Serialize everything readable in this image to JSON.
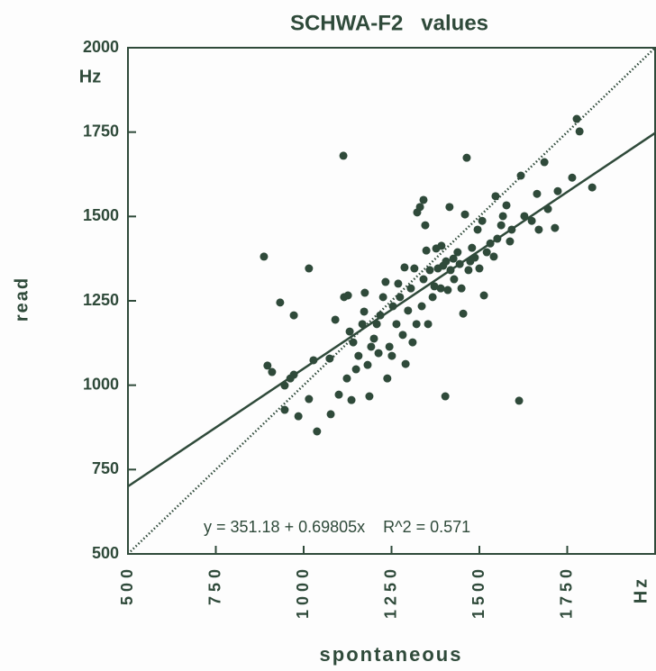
{
  "chart_data": {
    "type": "scatter",
    "title": "SCHWA-F2   values",
    "x_label": "spontaneous",
    "y_label": "read",
    "x_unit": "Hz",
    "y_unit": "Hz",
    "annotation": "y = 351.18 + 0.69805x    R^2 = 0.571",
    "fit": {
      "intercept": 351.18,
      "slope": 0.69805
    },
    "color": "#2f4a3a",
    "xlim": [
      500,
      2000
    ],
    "ylim": [
      500,
      2000
    ],
    "xticks": [
      500,
      750,
      1000,
      1250,
      1500,
      1750
    ],
    "yticks": [
      500,
      750,
      1000,
      1250,
      1500,
      1750,
      2000
    ],
    "x": [
      887,
      897,
      910,
      933,
      946,
      972,
      962,
      972,
      946,
      985,
      1015,
      1015,
      1028,
      1038,
      1077,
      1074,
      1090,
      1113,
      1100,
      1115,
      1126,
      1131,
      1123,
      1136,
      1141,
      1149,
      1156,
      1167,
      1172,
      1174,
      1182,
      1187,
      1192,
      1200,
      1208,
      1213,
      1218,
      1226,
      1233,
      1238,
      1244,
      1251,
      1254,
      1264,
      1269,
      1274,
      1282,
      1287,
      1290,
      1297,
      1305,
      1310,
      1315,
      1321,
      1323,
      1331,
      1336,
      1341,
      1341,
      1346,
      1349,
      1354,
      1359,
      1367,
      1372,
      1377,
      1382,
      1390,
      1392,
      1397,
      1403,
      1405,
      1410,
      1415,
      1418,
      1426,
      1428,
      1438,
      1444,
      1449,
      1454,
      1459,
      1464,
      1469,
      1474,
      1479,
      1487,
      1495,
      1500,
      1508,
      1513,
      1521,
      1531,
      1541,
      1546,
      1551,
      1562,
      1567,
      1577,
      1587,
      1592,
      1613,
      1618,
      1628,
      1649,
      1664,
      1669,
      1685,
      1695,
      1715,
      1723,
      1764,
      1777,
      1785,
      1821
    ],
    "values": [
      1381,
      1058,
      1039,
      1245,
      999,
      1207,
      1020,
      1031,
      927,
      908,
      959,
      1346,
      1074,
      863,
      914,
      1079,
      1194,
      1680,
      972,
      1261,
      1266,
      1159,
      1020,
      956,
      1127,
      1047,
      1087,
      1181,
      1218,
      1274,
      1060,
      967,
      1114,
      1138,
      1181,
      1095,
      1207,
      1261,
      1306,
      1020,
      1114,
      1087,
      1234,
      1181,
      1301,
      1261,
      1149,
      1349,
      1063,
      1221,
      1287,
      1127,
      1346,
      1181,
      1512,
      1528,
      1234,
      1549,
      1314,
      1474,
      1399,
      1181,
      1341,
      1261,
      1293,
      1405,
      1346,
      1287,
      1413,
      1354,
      967,
      1367,
      1282,
      1528,
      1341,
      1375,
      1314,
      1394,
      1359,
      1287,
      1212,
      1506,
      1674,
      1341,
      1367,
      1407,
      1378,
      1461,
      1346,
      1487,
      1266,
      1394,
      1420,
      1381,
      1560,
      1434,
      1474,
      1501,
      1533,
      1426,
      1461,
      954,
      1621,
      1501,
      1487,
      1567,
      1461,
      1661,
      1522,
      1466,
      1575,
      1615,
      1789,
      1752,
      1586
    ]
  }
}
